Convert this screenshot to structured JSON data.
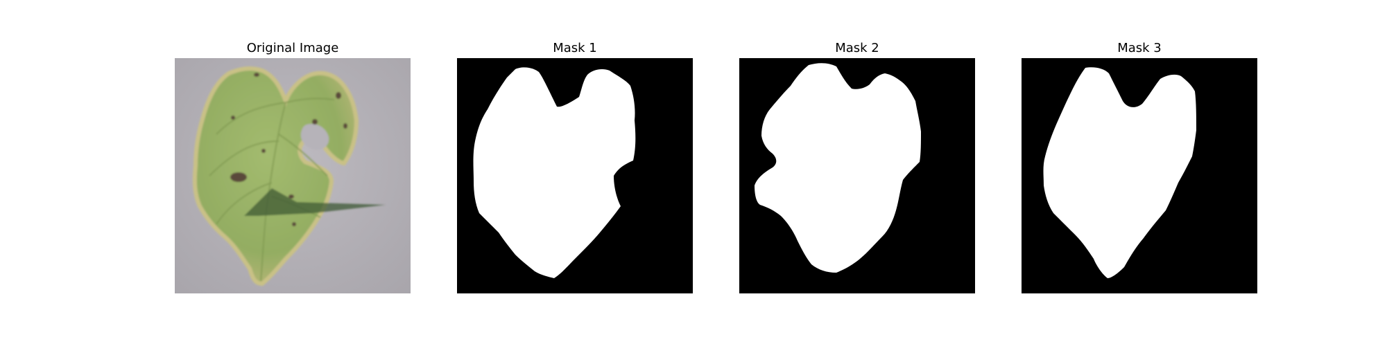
{
  "panels": [
    {
      "title": "Original Image"
    },
    {
      "title": "Mask 1"
    },
    {
      "title": "Mask 2"
    },
    {
      "title": "Mask 3"
    }
  ],
  "colors": {
    "mask_background": "#000000",
    "mask_foreground": "#ffffff",
    "photo_background": "#b3b0b6",
    "leaf_green": "#9bb46a",
    "leaf_dark_green": "#6f8c45",
    "leaf_edge_yellow": "#c9c186",
    "lesion_brown": "#5a4a3a",
    "overlay_triangle": "#3f5a34"
  }
}
